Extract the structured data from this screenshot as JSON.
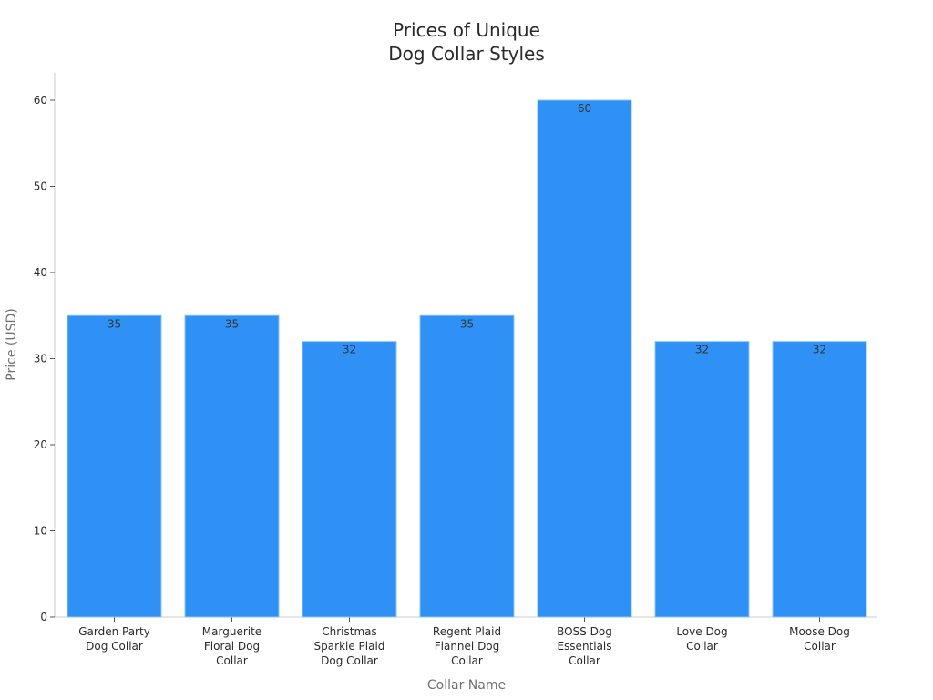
{
  "chart_data": {
    "type": "bar",
    "title": [
      "Prices of Unique",
      "Dog Collar Styles"
    ],
    "xlabel": "Collar Name",
    "ylabel": "Price (USD)",
    "ylim": [
      0,
      63.2
    ],
    "yticks": [
      0,
      10,
      20,
      30,
      40,
      50,
      60
    ],
    "grid": false,
    "legend": null,
    "categories": [
      [
        "Garden Party",
        "Dog Collar"
      ],
      [
        "Marguerite",
        "Floral Dog",
        "Collar"
      ],
      [
        "Christmas",
        "Sparkle Plaid",
        "Dog Collar"
      ],
      [
        "Regent Plaid",
        "Flannel Dog",
        "Collar"
      ],
      [
        "BOSS Dog",
        "Essentials",
        "Collar"
      ],
      [
        "Love Dog",
        "Collar"
      ],
      [
        "Moose Dog",
        "Collar"
      ]
    ],
    "values": [
      35,
      35,
      32,
      35,
      60,
      32,
      32
    ],
    "data_labels": [
      "35",
      "35",
      "32",
      "35",
      "60",
      "32",
      "32"
    ],
    "colors": {
      "bar": "#2f91f6",
      "bar_edge": "#8ec4f9",
      "axis": "#cccccc",
      "text": "#2a2a2a",
      "axis_title": "#707070"
    }
  }
}
